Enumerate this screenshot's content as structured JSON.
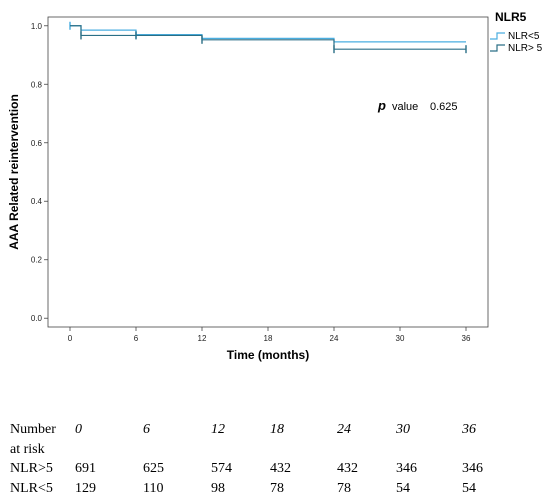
{
  "chart_data": {
    "type": "line",
    "step": true,
    "ylabel": "AAA Related reintervention",
    "xlabel": "Time (months)",
    "x_ticks": [
      "0",
      "6",
      "12",
      "18",
      "24",
      "30",
      "36"
    ],
    "y_ticks": [
      "0.0",
      "0.2",
      "0.4",
      "0.6",
      "0.8",
      "1.0"
    ],
    "xlim": [
      -2,
      38
    ],
    "ylim": [
      -0.03,
      1.03
    ],
    "grid": false,
    "legend": {
      "title": "NLR5",
      "placement": "top-right"
    },
    "annotation": {
      "p_symbol": "p",
      "p_label": "value",
      "p_value": "0.625"
    },
    "series": [
      {
        "name": "NLR<5",
        "color": "#4aaee0",
        "steps": [
          [
            0,
            1.0
          ],
          [
            1,
            0.985
          ],
          [
            6,
            0.97
          ],
          [
            12,
            0.957
          ],
          [
            24,
            0.945
          ],
          [
            36,
            0.945
          ]
        ],
        "censor_marks": [
          [
            0,
            1.0
          ],
          [
            6,
            0.97
          ]
        ]
      },
      {
        "name": "NLR> 5",
        "color": "#2b6f86",
        "steps": [
          [
            0,
            1.0
          ],
          [
            1,
            0.967
          ],
          [
            12,
            0.952
          ],
          [
            24,
            0.92
          ],
          [
            36,
            0.92
          ]
        ],
        "censor_marks": [
          [
            1,
            0.967
          ],
          [
            6,
            0.967
          ],
          [
            12,
            0.952
          ],
          [
            24,
            0.92
          ],
          [
            36,
            0.92
          ]
        ]
      }
    ]
  },
  "risk_table": {
    "header_line1": "Number",
    "header_line2": "at risk",
    "time_points": [
      "0",
      "6",
      "12",
      "18",
      "24",
      "30",
      "36"
    ],
    "rows": [
      {
        "label": "NLR>5",
        "values": [
          "691",
          "625",
          "574",
          "432",
          "432",
          "346",
          "346"
        ]
      },
      {
        "label": "NLR<5",
        "values": [
          "129",
          "110",
          "98",
          "78",
          "78",
          "54",
          "54"
        ]
      }
    ]
  }
}
